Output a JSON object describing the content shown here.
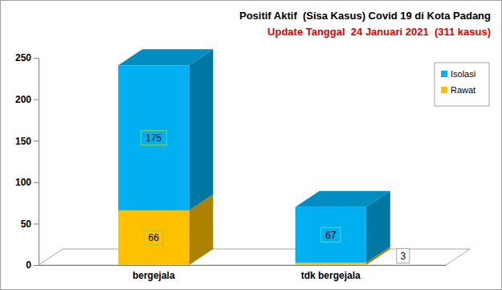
{
  "chart_data": {
    "type": "bar",
    "title": "Positif Aktif  (Sisa Kasus) Covid 19 di Kota Padang",
    "subtitle": "Update Tanggal  24 Januari 2021  (311 kasus)",
    "categories": [
      "bergejala",
      "tdk bergejala"
    ],
    "series": [
      {
        "name": "Isolasi",
        "color": "#00b0f0",
        "values": [
          175,
          67
        ]
      },
      {
        "name": "Rawat",
        "color": "#ffc000",
        "values": [
          66,
          3
        ]
      }
    ],
    "stacked": true,
    "data_labels": true,
    "legend": "top-right",
    "grid": false,
    "ylim": [
      0,
      250
    ],
    "yticks": [
      0,
      50,
      100,
      150,
      200,
      250
    ]
  }
}
